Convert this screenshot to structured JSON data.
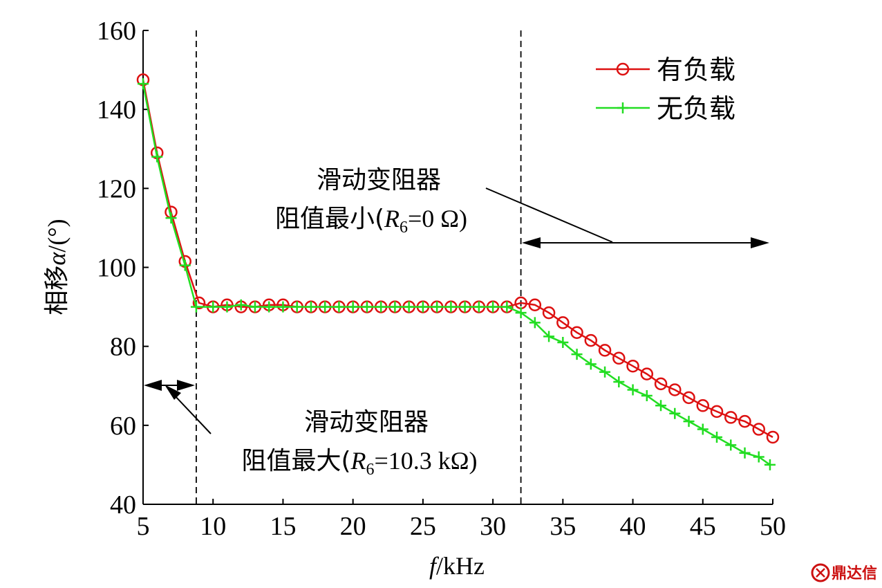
{
  "chart_data": {
    "type": "line",
    "xlabel_var": "f",
    "xlabel_unit": "/kHz",
    "ylabel_prefix": "相移",
    "ylabel_var": "α",
    "ylabel_unit": "/(°)",
    "xlim": [
      5,
      50
    ],
    "ylim": [
      40,
      160
    ],
    "x_ticks": [
      5,
      10,
      15,
      20,
      25,
      30,
      35,
      40,
      45,
      50
    ],
    "y_ticks": [
      40,
      60,
      80,
      100,
      120,
      140,
      160
    ],
    "legend_position": "top-right",
    "series": [
      {
        "name": "有负载",
        "color": "#dd1111",
        "marker": "circle",
        "x": [
          5,
          6,
          7,
          8,
          9,
          10,
          11,
          12,
          13,
          14,
          15,
          16,
          17,
          18,
          19,
          20,
          21,
          22,
          23,
          24,
          25,
          26,
          27,
          28,
          29,
          30,
          31,
          32,
          33,
          34,
          35,
          36,
          37,
          38,
          39,
          40,
          41,
          42,
          43,
          44,
          45,
          46,
          47,
          48,
          49,
          50
        ],
        "values": [
          147.5,
          129,
          114,
          101.5,
          91,
          90,
          90.5,
          90,
          90,
          90.5,
          90.5,
          90,
          90,
          90,
          90,
          90,
          90,
          90,
          90,
          90,
          90,
          90,
          90,
          90,
          90,
          90,
          90,
          91,
          90.5,
          88.5,
          86,
          83.5,
          81.5,
          79,
          77,
          75,
          73,
          70.5,
          69,
          67,
          65,
          63.5,
          62,
          61,
          59,
          57
        ]
      },
      {
        "name": "无负载",
        "color": "#22dd22",
        "marker": "plus",
        "x": [
          5,
          6,
          7,
          8,
          8.8,
          10,
          11,
          12,
          13,
          14,
          15,
          16,
          17,
          18,
          19,
          20,
          21,
          22,
          23,
          24,
          25,
          26,
          27,
          28,
          29,
          30,
          31,
          32,
          33,
          34,
          35,
          36,
          37,
          38,
          39,
          40,
          41,
          42,
          43,
          44,
          45,
          46,
          47,
          48,
          49,
          49.8
        ],
        "values": [
          146.5,
          128,
          112.5,
          100.5,
          90,
          90,
          90,
          90.5,
          90,
          90,
          90,
          90,
          90,
          90,
          90,
          90,
          90,
          90,
          90,
          90,
          90,
          90,
          90,
          90,
          90,
          90,
          90,
          88.5,
          86,
          82.5,
          81,
          78,
          75.5,
          73.5,
          71,
          69,
          67.5,
          65,
          63,
          61,
          59,
          57,
          55,
          53,
          52,
          50
        ]
      }
    ],
    "dashed_lines_x": [
      8.8,
      32
    ],
    "annotations": {
      "upper_line1": "滑动变阻器",
      "upper_line2_prefix": "阻值最小(",
      "upper_line2_var": "R",
      "upper_line2_sub": "6",
      "upper_line2_suffix": "=0 Ω)",
      "lower_line1": "滑动变阻器",
      "lower_line2_prefix": "阻值最大(",
      "lower_line2_var": "R",
      "lower_line2_sub": "6",
      "lower_line2_suffix": "=10.3 kΩ)"
    }
  },
  "watermark": {
    "logo_icon": "dingdaxin-logo-icon",
    "text": "鼎达信"
  }
}
